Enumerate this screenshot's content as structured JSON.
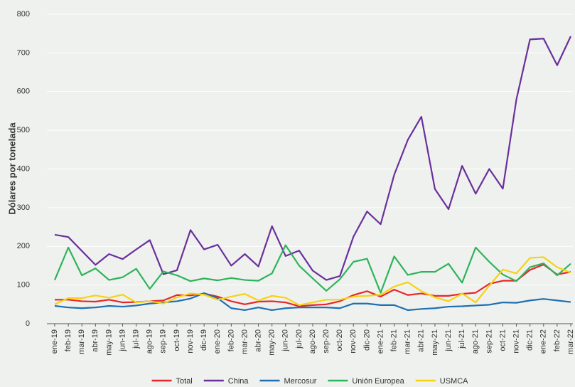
{
  "chart_data": {
    "type": "line",
    "y_label": "Dólares por tonelada",
    "categories": [
      "ene-19",
      "feb-19",
      "mar-19",
      "abr-19",
      "may-19",
      "jun-19",
      "jul-19",
      "ago-19",
      "sep-19",
      "oct-19",
      "nov-19",
      "dic-19",
      "ene-20",
      "feb-20",
      "mar-20",
      "abr-20",
      "may-20",
      "jun-20",
      "jul-20",
      "ago-20",
      "sep-20",
      "oct-20",
      "nov-20",
      "dic-20",
      "ene-21",
      "feb-21",
      "mar-21",
      "abr-21",
      "may-21",
      "jun-21",
      "jul-21",
      "ago-21",
      "sep-21",
      "oct-21",
      "nov-21",
      "dic-21",
      "ene-22",
      "feb-22",
      "mar-22"
    ],
    "series": [
      {
        "name": "Total",
        "color": "#e8262a",
        "values": [
          62,
          62,
          58,
          57,
          62,
          55,
          56,
          58,
          60,
          74,
          73,
          78,
          70,
          58,
          50,
          57,
          58,
          55,
          45,
          48,
          50,
          58,
          74,
          84,
          70,
          88,
          74,
          78,
          72,
          72,
          77,
          80,
          103,
          111,
          111,
          139,
          153,
          127,
          134
        ]
      },
      {
        "name": "China",
        "color": "#6a2f9c",
        "values": [
          230,
          224,
          188,
          152,
          180,
          167,
          192,
          216,
          128,
          138,
          242,
          192,
          204,
          150,
          180,
          148,
          252,
          175,
          189,
          137,
          113,
          123,
          225,
          290,
          257,
          385,
          475,
          535,
          348,
          296,
          408,
          336,
          400,
          349,
          580,
          735,
          737,
          668,
          743
        ]
      },
      {
        "name": "Mercosur",
        "color": "#1f6fb2",
        "values": [
          46,
          42,
          40,
          42,
          46,
          44,
          47,
          52,
          55,
          58,
          65,
          79,
          66,
          40,
          35,
          42,
          35,
          40,
          42,
          42,
          42,
          40,
          52,
          52,
          48,
          48,
          35,
          38,
          40,
          44,
          45,
          47,
          49,
          55,
          54,
          60,
          64,
          60,
          56
        ]
      },
      {
        "name": "Unión Europea",
        "color": "#2eb35a",
        "values": [
          113,
          197,
          125,
          143,
          113,
          120,
          142,
          90,
          135,
          125,
          110,
          117,
          112,
          118,
          113,
          111,
          130,
          203,
          150,
          117,
          85,
          115,
          160,
          168,
          80,
          174,
          126,
          134,
          134,
          155,
          106,
          197,
          160,
          127,
          110,
          146,
          156,
          125,
          155
        ]
      },
      {
        "name": "USMCA",
        "color": "#f5d311",
        "values": [
          50,
          66,
          66,
          73,
          67,
          75,
          55,
          58,
          52,
          68,
          78,
          75,
          62,
          70,
          77,
          60,
          72,
          67,
          48,
          55,
          62,
          62,
          70,
          72,
          75,
          96,
          107,
          84,
          68,
          58,
          78,
          55,
          98,
          140,
          130,
          170,
          172,
          146,
          132
        ]
      }
    ],
    "ylim": [
      0,
      800
    ],
    "yticks": [
      0,
      100,
      200,
      300,
      400,
      500,
      600,
      700,
      800
    ],
    "grid": true
  }
}
